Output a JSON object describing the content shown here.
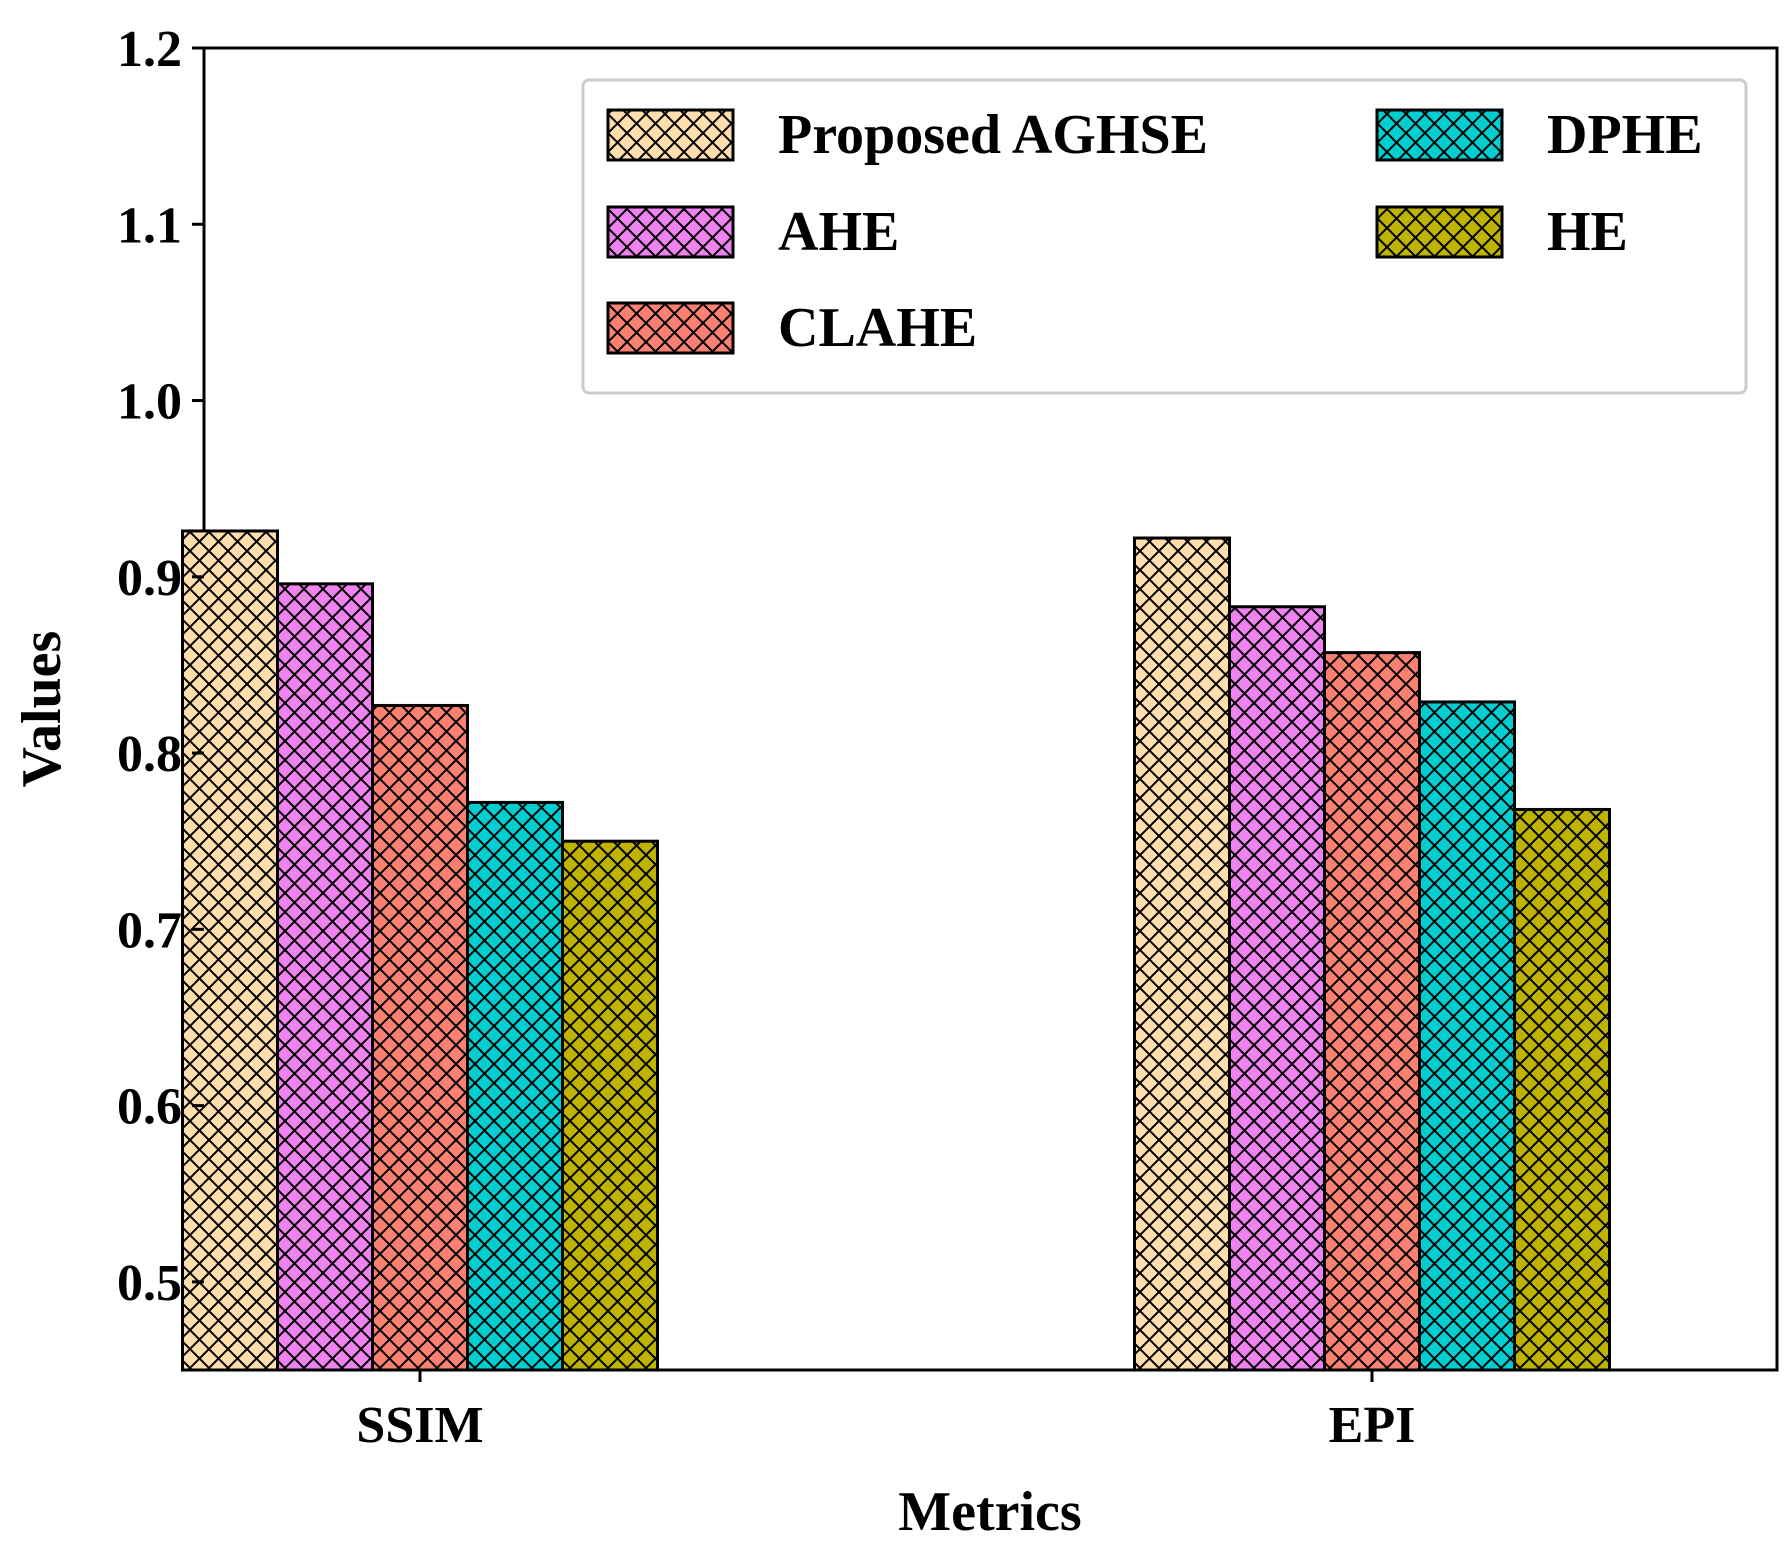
{
  "chart_data": {
    "type": "bar",
    "title": "",
    "xlabel": "Metrics",
    "ylabel": "Values",
    "categories": [
      "SSIM",
      "EPI"
    ],
    "ylim": [
      0.45,
      1.2
    ],
    "yticks": [
      "0.5",
      "0.6",
      "0.7",
      "0.8",
      "0.9",
      "1.0",
      "1.1",
      "1.2"
    ],
    "legend_position": "top-right",
    "hatch": "crosshatch",
    "series": [
      {
        "name": "Proposed AGHSE",
        "color": "#FFDEAD",
        "values": [
          0.926,
          0.922
        ]
      },
      {
        "name": "AHE",
        "color": "#EE82EE",
        "values": [
          0.896,
          0.883
        ]
      },
      {
        "name": "CLAHE",
        "color": "#FA8072",
        "values": [
          0.827,
          0.857
        ]
      },
      {
        "name": "DPHE",
        "color": "#00CED1",
        "values": [
          0.772,
          0.829
        ]
      },
      {
        "name": "HE",
        "color": "#BDB300",
        "values": [
          0.75,
          0.768
        ]
      }
    ]
  }
}
